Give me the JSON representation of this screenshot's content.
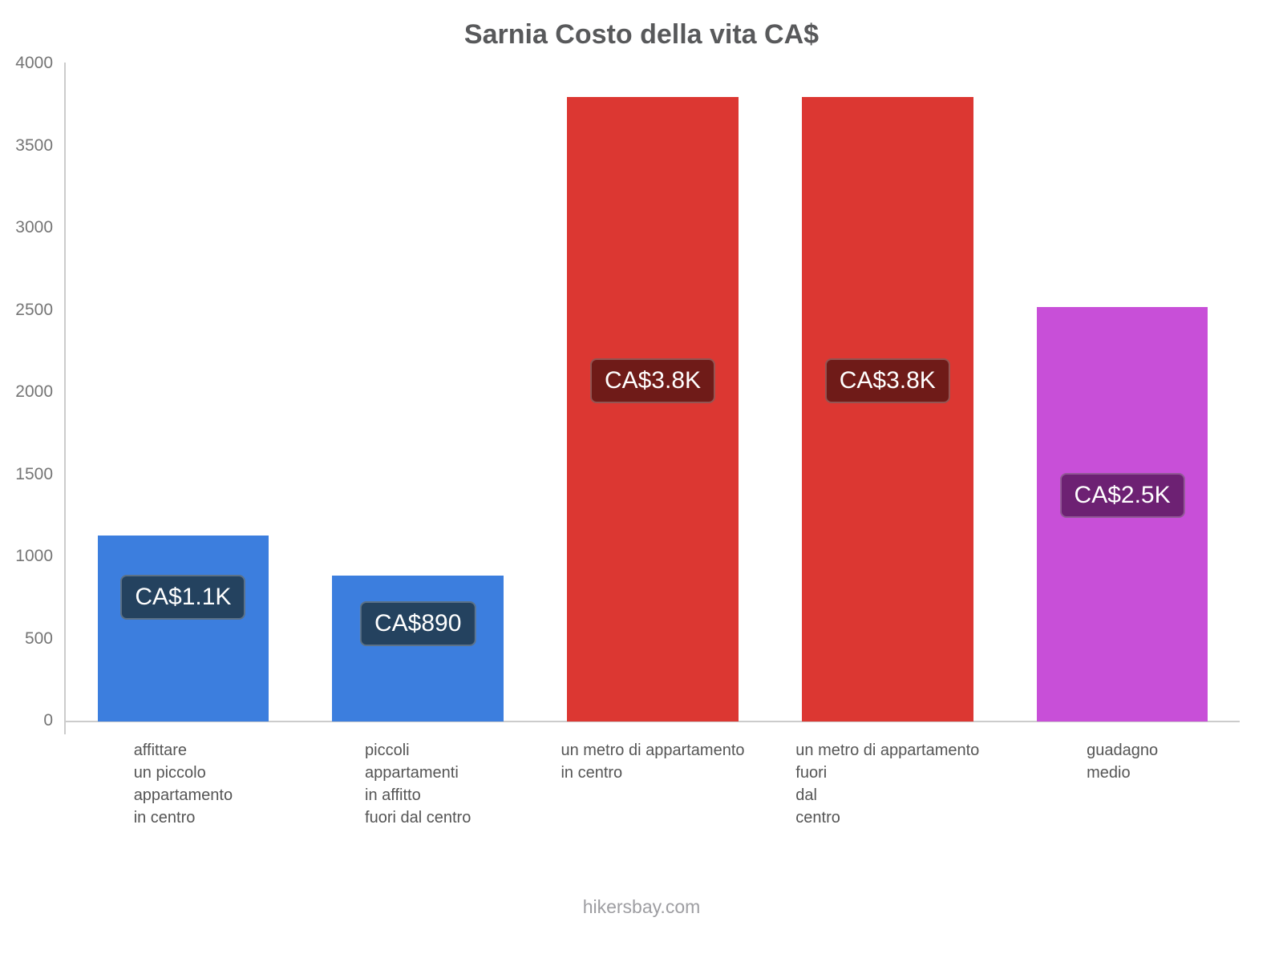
{
  "title": "Sarnia Costo della vita CA$",
  "footer": "hikersbay.com",
  "chart_data": {
    "type": "bar",
    "title": "Sarnia Costo della vita CA$",
    "currency": "CA$",
    "categories": [
      "affittare\nun piccolo\nappartamento\nin centro",
      "piccoli\nappartamenti\nin affitto\nfuori dal centro",
      "un metro di appartamento\nin centro",
      "un metro di appartamento\nfuori\ndal\ncentro",
      "guadagno\nmedio"
    ],
    "values": [
      1130,
      890,
      3800,
      3800,
      2520
    ],
    "value_labels": [
      "CA$1.1K",
      "CA$890",
      "CA$3.8K",
      "CA$3.8K",
      "CA$2.5K"
    ],
    "bar_colors": [
      "#3c7ede",
      "#3c7ede",
      "#dc3732",
      "#dc3732",
      "#c84fd8"
    ],
    "label_bg_colors": [
      "#24425f",
      "#24425f",
      "#6f1b18",
      "#6f1b18",
      "#6d2173"
    ],
    "xlabel": "",
    "ylabel": "",
    "ylim": [
      0,
      4000
    ],
    "yticks": [
      0,
      500,
      1000,
      1500,
      2000,
      2500,
      3000,
      3500,
      4000
    ],
    "grid": false,
    "legend": false
  }
}
